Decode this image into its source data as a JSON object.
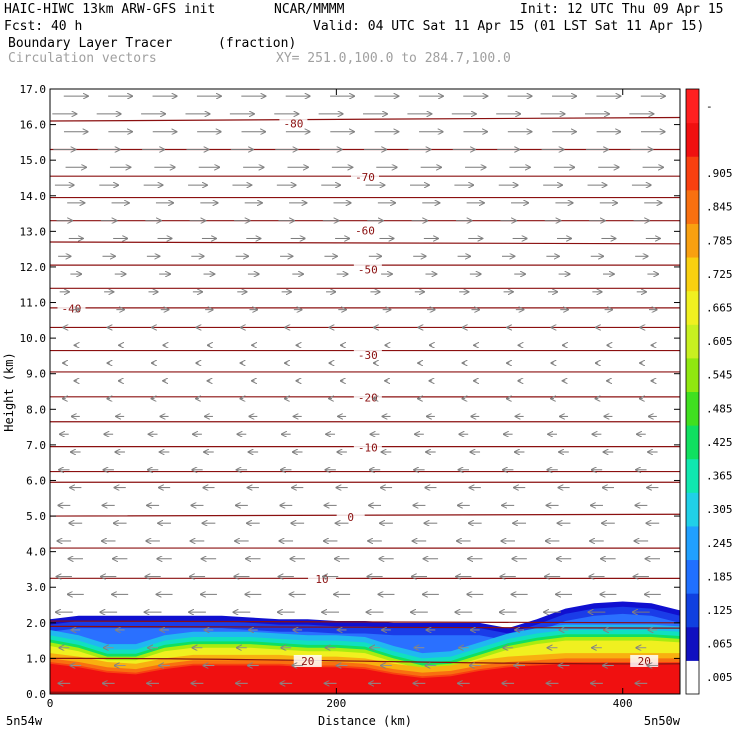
{
  "header": {
    "model": "HAIC-HIWC 13km ARW-GFS init",
    "org": "NCAR/MMMM",
    "init": "Init: 12 UTC Thu 09 Apr 15",
    "fcst": "Fcst:   40 h",
    "valid": "Valid: 04 UTC Sat 11 Apr 15 (01 LST Sat 11 Apr 15)",
    "field": "Boundary Layer Tracer",
    "units": "(fraction)",
    "vectors": "Circulation vectors",
    "xy": "XY= 251.0,100.0 to 284.7,100.0"
  },
  "chart_data": {
    "type": "heatmap",
    "xlabel": "Distance (km)",
    "ylabel": "Height (km)",
    "xlim": [
      0,
      440
    ],
    "ylim": [
      0,
      17
    ],
    "x_ticks": [
      0,
      200,
      400
    ],
    "x_tick_labels": [
      "0",
      "200",
      "400"
    ],
    "y_ticks": [
      0,
      1,
      2,
      3,
      4,
      5,
      6,
      7,
      8,
      9,
      10,
      11,
      12,
      13,
      14,
      15,
      16,
      17
    ],
    "y_tick_labels": [
      "0.0",
      "1.0",
      "2.0",
      "3.0",
      "4.0",
      "5.0",
      "6.0",
      "7.0",
      "8.0",
      "9.0",
      "10.0",
      "11.0",
      "12.0",
      "13.0",
      "14.0",
      "15.0",
      "16.0",
      "17.0"
    ],
    "endpoint_labels": [
      "5n54w",
      "5n50w"
    ],
    "colorbar": {
      "colors": [
        "#ffffff",
        "#1010c0",
        "#1040e0",
        "#2070ff",
        "#20a0ff",
        "#20d0e8",
        "#10e8b0",
        "#10e060",
        "#40e020",
        "#90e810",
        "#c8f020",
        "#f0f020",
        "#f8d010",
        "#f8a010",
        "#f87010",
        "#f84010",
        "#f01010",
        "#ff2020"
      ],
      "labels": [
        ".005",
        ".065",
        ".125",
        ".185",
        ".245",
        ".305",
        ".365",
        ".425",
        ".485",
        ".545",
        ".605",
        ".665",
        ".725",
        ".785",
        ".845",
        ".905",
        "-"
      ],
      "label_indices": [
        0,
        1,
        2,
        3,
        4,
        5,
        6,
        7,
        8,
        9,
        10,
        11,
        12,
        13,
        14,
        15,
        17
      ]
    },
    "tracer_profile": {
      "x": [
        0,
        20,
        40,
        60,
        80,
        100,
        120,
        140,
        160,
        180,
        200,
        220,
        240,
        260,
        280,
        300,
        320,
        340,
        360,
        380,
        400,
        420,
        440
      ],
      "blue_top": [
        2.1,
        2.2,
        2.2,
        2.2,
        2.2,
        2.2,
        2.2,
        2.15,
        2.1,
        2.1,
        2.05,
        2.05,
        2.0,
        2.0,
        2.0,
        2.0,
        1.85,
        2.1,
        2.4,
        2.55,
        2.6,
        2.55,
        2.35
      ],
      "green_top": [
        1.45,
        1.3,
        1.05,
        1.05,
        1.3,
        1.4,
        1.4,
        1.4,
        1.35,
        1.3,
        1.3,
        1.25,
        1.0,
        0.8,
        0.85,
        1.1,
        1.35,
        1.5,
        1.6,
        1.6,
        1.6,
        1.6,
        1.55
      ],
      "red_top": [
        0.85,
        0.75,
        0.6,
        0.55,
        0.7,
        0.8,
        0.8,
        0.8,
        0.8,
        0.75,
        0.75,
        0.7,
        0.55,
        0.45,
        0.5,
        0.65,
        0.75,
        0.8,
        0.85,
        0.85,
        0.85,
        0.85,
        0.85
      ]
    },
    "temperature_contours": {
      "labels": [
        {
          "value": "-80",
          "x": 170,
          "y": 16.0
        },
        {
          "value": "-70",
          "x": 220,
          "y": 14.5
        },
        {
          "value": "-60",
          "x": 220,
          "y": 13.0
        },
        {
          "value": "-50",
          "x": 222,
          "y": 11.9
        },
        {
          "value": "-40",
          "x": 15,
          "y": 10.8
        },
        {
          "value": "-30",
          "x": 222,
          "y": 9.5
        },
        {
          "value": "-20",
          "x": 222,
          "y": 8.3
        },
        {
          "value": "-10",
          "x": 222,
          "y": 6.9
        },
        {
          "value": "0",
          "x": 210,
          "y": 4.95
        },
        {
          "value": "10",
          "x": 190,
          "y": 3.2
        },
        {
          "value": "20",
          "x": 180,
          "y": 0.9
        },
        {
          "value": "20",
          "x": 415,
          "y": 0.9
        }
      ],
      "lines": [
        {
          "y": [
            16.1,
            16.2
          ]
        },
        {
          "y": [
            15.3,
            15.3
          ]
        },
        {
          "y": [
            14.55,
            14.55
          ]
        },
        {
          "y": [
            13.95,
            13.95
          ]
        },
        {
          "y": [
            13.3,
            13.3
          ]
        },
        {
          "y": [
            12.7,
            12.65
          ]
        },
        {
          "y": [
            12.05,
            12.05
          ]
        },
        {
          "y": [
            11.4,
            11.4
          ]
        },
        {
          "y": [
            10.85,
            10.85
          ]
        },
        {
          "y": [
            10.3,
            10.3
          ]
        },
        {
          "y": [
            9.65,
            9.65
          ]
        },
        {
          "y": [
            9.05,
            9.05
          ]
        },
        {
          "y": [
            8.35,
            8.35
          ]
        },
        {
          "y": [
            7.65,
            7.65
          ]
        },
        {
          "y": [
            6.95,
            6.95
          ]
        },
        {
          "y": [
            6.25,
            6.25
          ]
        },
        {
          "y": [
            5.95,
            5.95
          ]
        },
        {
          "y": [
            5.0,
            5.05
          ]
        },
        {
          "y": [
            4.1,
            4.1
          ]
        },
        {
          "y": [
            3.25,
            3.25
          ]
        },
        {
          "y": [
            2.05,
            2.0
          ]
        },
        {
          "y": [
            1.9,
            1.85
          ]
        },
        {
          "y": [
            1.0,
            0.85
          ]
        },
        {
          "y": [
            0.05,
            0.0
          ]
        }
      ]
    },
    "vectors": {
      "upper_direction": "east",
      "lower_direction": "west",
      "transition_height_km": 10.3
    }
  }
}
